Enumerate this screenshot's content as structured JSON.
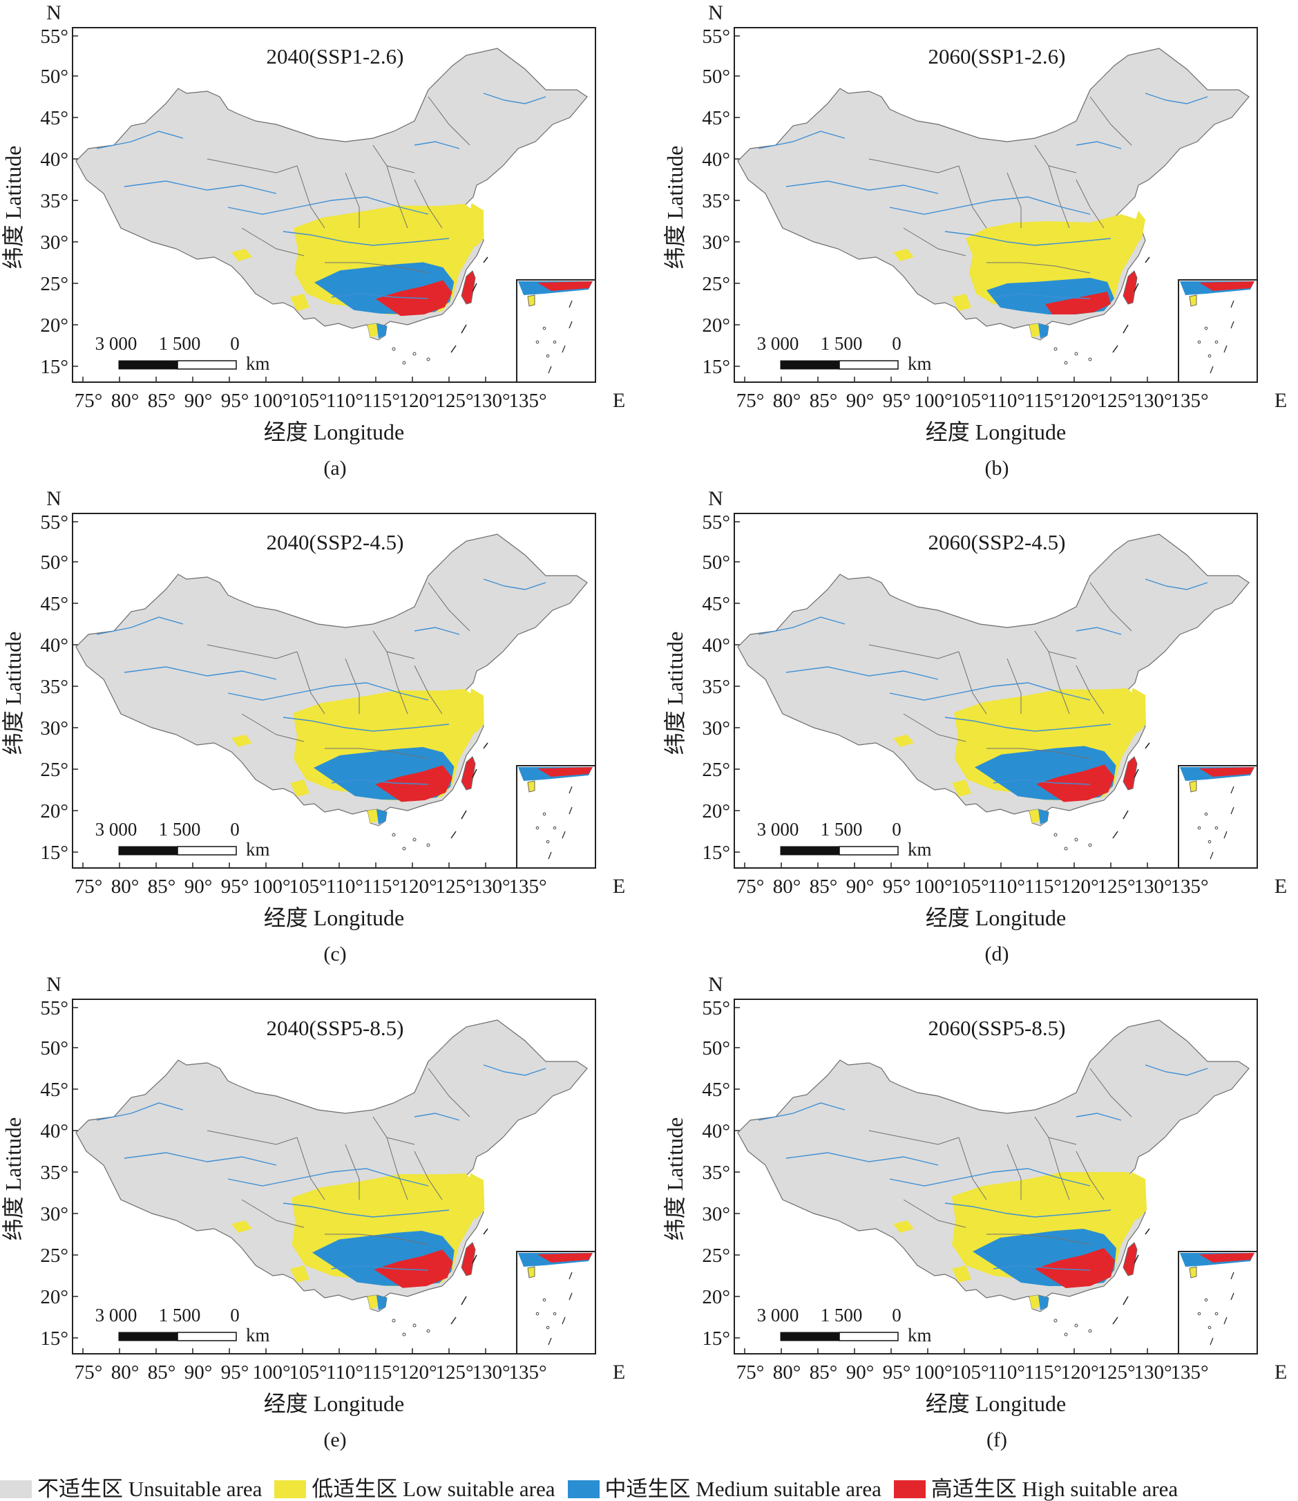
{
  "axes": {
    "north_label": "N",
    "east_label": "E",
    "latitude_ticks": [
      "55°",
      "50°",
      "45°",
      "40°",
      "35°",
      "30°",
      "25°",
      "20°",
      "15°"
    ],
    "longitude_ticks": [
      "75°",
      "80°",
      "85°",
      "90°",
      "95°",
      "100°",
      "105°",
      "110°",
      "115°",
      "120°",
      "125°",
      "130°",
      "135°"
    ],
    "latitude_title": "纬度 Latitude",
    "longitude_title": "经度 Longitude"
  },
  "scale_bar": {
    "labels": [
      "3 000",
      "1 500",
      "0"
    ],
    "unit": "km"
  },
  "panels": [
    {
      "label": "(a)",
      "scenario": "2040(SSP1-2.6)"
    },
    {
      "label": "(b)",
      "scenario": "2060(SSP1-2.6)"
    },
    {
      "label": "(c)",
      "scenario": "2040(SSP2-4.5)"
    },
    {
      "label": "(d)",
      "scenario": "2060(SSP2-4.5)"
    },
    {
      "label": "(e)",
      "scenario": "2040(SSP5-8.5)"
    },
    {
      "label": "(f)",
      "scenario": "2060(SSP5-8.5)"
    }
  ],
  "legend": [
    {
      "label": "不适生区 Unsuitable area",
      "color": "#dcdcdc"
    },
    {
      "label": "低适生区 Low suitable area",
      "color": "#f0e63c"
    },
    {
      "label": "中适生区 Medium suitable area",
      "color": "#2a8fd2"
    },
    {
      "label": "高适生区 High suitable area",
      "color": "#e3262c"
    }
  ]
}
